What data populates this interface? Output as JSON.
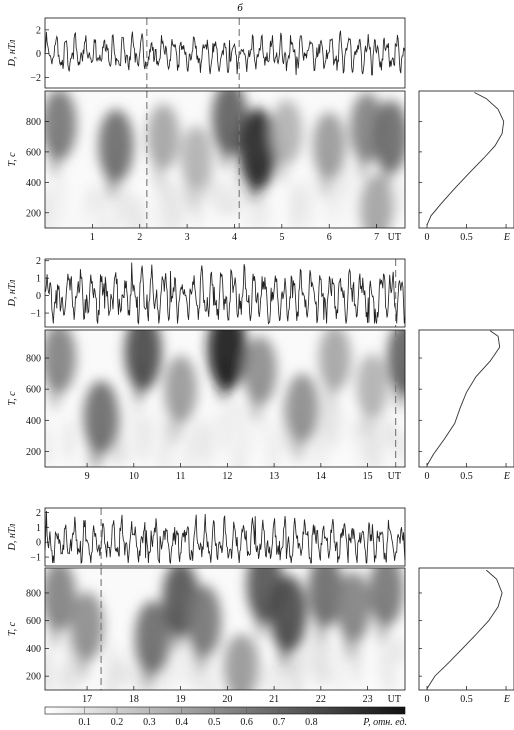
{
  "figure": {
    "panel_label": "б",
    "time_unit_label": "UT",
    "colorbar": {
      "label": "P, отн. ед.",
      "ticks": [
        "0.1",
        "0.2",
        "0.3",
        "0.4",
        "0.5",
        "0.6",
        "0.7",
        "0.8"
      ]
    }
  },
  "chart_data": [
    {
      "id": "row1-D",
      "type": "line",
      "ylabel": "D, нТл",
      "xlim": [
        0.0,
        7.6
      ],
      "ylim": [
        -2.9,
        3.0
      ],
      "yticks": [
        "2",
        "0",
        "−2"
      ],
      "markers_x": [
        2.15,
        4.1
      ],
      "note": "dense oscillating geomagnetic D-component trace, mostly within ±1.5 nT"
    },
    {
      "id": "row1-P",
      "type": "heatmap",
      "ylabel": "T, с",
      "xlim": [
        0.0,
        7.6
      ],
      "ylim": [
        100,
        1000
      ],
      "xticks": [
        "1",
        "2",
        "3",
        "4",
        "5",
        "6",
        "7"
      ],
      "yticks": [
        "200",
        "400",
        "600",
        "800"
      ],
      "markers_x": [
        2.15,
        4.1
      ],
      "blobs": [
        {
          "t": 0.3,
          "T": 780,
          "P": 0.55
        },
        {
          "t": 1.5,
          "T": 640,
          "P": 0.6
        },
        {
          "t": 2.5,
          "T": 700,
          "P": 0.35
        },
        {
          "t": 3.2,
          "T": 560,
          "P": 0.3
        },
        {
          "t": 3.9,
          "T": 820,
          "P": 0.65
        },
        {
          "t": 4.5,
          "T": 620,
          "P": 0.9
        },
        {
          "t": 5.1,
          "T": 730,
          "P": 0.3
        },
        {
          "t": 6.0,
          "T": 640,
          "P": 0.4
        },
        {
          "t": 6.8,
          "T": 760,
          "P": 0.5
        },
        {
          "t": 7.3,
          "T": 700,
          "P": 0.6
        },
        {
          "t": 7.0,
          "T": 230,
          "P": 0.35
        }
      ]
    },
    {
      "id": "row1-E",
      "type": "line",
      "xlabel": "E",
      "xlim": [
        0,
        1.05
      ],
      "ylim": [
        100,
        1000
      ],
      "xticks": [
        "0",
        "0.5",
        "1"
      ],
      "x": [
        0.0,
        0.05,
        0.18,
        0.35,
        0.55,
        0.72,
        0.86,
        0.95,
        0.97,
        0.9,
        0.75,
        0.6
      ],
      "y": [
        120,
        180,
        260,
        360,
        470,
        560,
        640,
        720,
        800,
        880,
        950,
        990
      ]
    },
    {
      "id": "row2-D",
      "type": "line",
      "ylabel": "D, нТл",
      "xlim": [
        8.1,
        15.8
      ],
      "ylim": [
        -1.8,
        2.1
      ],
      "yticks": [
        "2",
        "1",
        "0",
        "−1"
      ],
      "markers_x": [
        15.6
      ],
      "note": "dense oscillating geomagnetic D-component trace"
    },
    {
      "id": "row2-P",
      "type": "heatmap",
      "ylabel": "T, с",
      "xlim": [
        8.1,
        15.8
      ],
      "ylim": [
        100,
        980
      ],
      "xticks": [
        "9",
        "10",
        "11",
        "12",
        "13",
        "14",
        "15"
      ],
      "yticks": [
        "200",
        "400",
        "600",
        "800"
      ],
      "markers_x": [
        15.6
      ],
      "blobs": [
        {
          "t": 8.4,
          "T": 800,
          "P": 0.5
        },
        {
          "t": 9.3,
          "T": 420,
          "P": 0.6
        },
        {
          "t": 10.2,
          "T": 840,
          "P": 0.75
        },
        {
          "t": 11.0,
          "T": 600,
          "P": 0.4
        },
        {
          "t": 12.0,
          "T": 860,
          "P": 0.95
        },
        {
          "t": 12.7,
          "T": 720,
          "P": 0.45
        },
        {
          "t": 13.6,
          "T": 480,
          "P": 0.45
        },
        {
          "t": 14.3,
          "T": 800,
          "P": 0.35
        },
        {
          "t": 15.1,
          "T": 620,
          "P": 0.3
        },
        {
          "t": 15.8,
          "T": 800,
          "P": 0.65
        }
      ]
    },
    {
      "id": "row2-E",
      "type": "line",
      "xlabel": "E",
      "xlim": [
        0,
        1.05
      ],
      "ylim": [
        100,
        980
      ],
      "xticks": [
        "0",
        "0.5",
        "1"
      ],
      "x": [
        0.0,
        0.08,
        0.22,
        0.35,
        0.42,
        0.5,
        0.62,
        0.8,
        0.92,
        0.9,
        0.8
      ],
      "y": [
        110,
        180,
        280,
        380,
        480,
        580,
        680,
        780,
        870,
        940,
        975
      ]
    },
    {
      "id": "row3-D",
      "type": "line",
      "ylabel": "D, нТл",
      "xlim": [
        16.1,
        23.8
      ],
      "ylim": [
        -1.6,
        2.3
      ],
      "yticks": [
        "2",
        "1",
        "0",
        "−1"
      ],
      "markers_x": [
        17.3
      ],
      "note": "dense oscillating geomagnetic D-component trace"
    },
    {
      "id": "row3-P",
      "type": "heatmap",
      "ylabel": "T, с",
      "xlim": [
        16.1,
        23.8
      ],
      "ylim": [
        100,
        980
      ],
      "xticks": [
        "17",
        "18",
        "19",
        "20",
        "21",
        "22",
        "23"
      ],
      "yticks": [
        "200",
        "400",
        "600",
        "800"
      ],
      "markers_x": [
        17.3
      ],
      "blobs": [
        {
          "t": 16.4,
          "T": 780,
          "P": 0.5
        },
        {
          "t": 17.0,
          "T": 560,
          "P": 0.45
        },
        {
          "t": 18.4,
          "T": 480,
          "P": 0.6
        },
        {
          "t": 19.0,
          "T": 760,
          "P": 0.7
        },
        {
          "t": 19.5,
          "T": 600,
          "P": 0.55
        },
        {
          "t": 20.3,
          "T": 260,
          "P": 0.4
        },
        {
          "t": 20.8,
          "T": 860,
          "P": 0.7
        },
        {
          "t": 21.3,
          "T": 650,
          "P": 0.75
        },
        {
          "t": 22.1,
          "T": 820,
          "P": 0.6
        },
        {
          "t": 22.7,
          "T": 700,
          "P": 0.5
        },
        {
          "t": 23.4,
          "T": 820,
          "P": 0.55
        }
      ]
    },
    {
      "id": "row3-E",
      "type": "line",
      "xlabel": "E",
      "xlim": [
        0,
        1.05
      ],
      "ylim": [
        100,
        980
      ],
      "xticks": [
        "0",
        "0.5",
        "1"
      ],
      "x": [
        0.0,
        0.1,
        0.28,
        0.45,
        0.62,
        0.78,
        0.9,
        0.95,
        0.88,
        0.75
      ],
      "y": [
        110,
        200,
        300,
        400,
        500,
        600,
        700,
        800,
        900,
        965
      ]
    }
  ]
}
